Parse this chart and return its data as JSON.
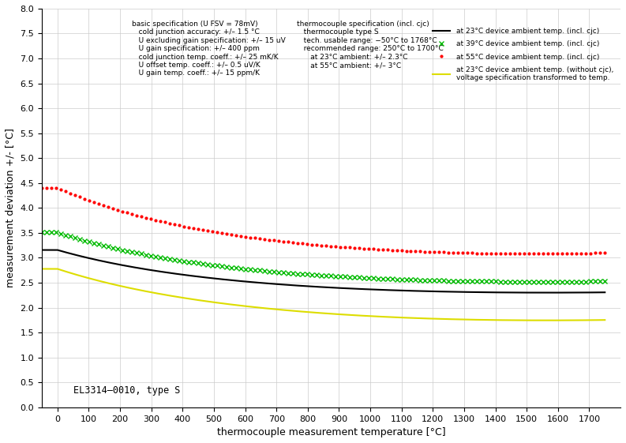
{
  "title": "",
  "xlabel": "thermocouple measurement temperature [°C]",
  "ylabel": "measurement deviation +/- [°C]",
  "annotation": "EL3314–0010, type S",
  "xlim": [
    -50,
    1800
  ],
  "ylim": [
    0,
    8
  ],
  "xticks": [
    0,
    100,
    200,
    300,
    400,
    500,
    600,
    700,
    800,
    900,
    1000,
    1100,
    1200,
    1300,
    1400,
    1500,
    1600,
    1700
  ],
  "yticks": [
    0,
    0.5,
    1,
    1.5,
    2,
    2.5,
    3,
    3.5,
    4,
    4.5,
    5,
    5.5,
    6,
    6.5,
    7,
    7.5,
    8
  ],
  "legend_entries": [
    "at 23°C device ambient temp. (incl. cjc)",
    "at 39°C device ambient temp. (incl. cjc)",
    "at 55°C device ambient temp. (incl. cjc)",
    "at 23°C device ambient temp. (without cjc),\nvoltage specification transformed to temp."
  ],
  "text_box_left": "basic specification (U FSV = 78mV)\n   cold junction accuracy: +/– 1.5 °C\n   U excluding gain specification: +/– 15 uV\n   U gain specification: +/– 400 ppm\n   cold junction temp. coeff.: +/– 25 mK/K\n   U offset temp. coeff.: +/– 0.5 uV/K\n   U gain temp. coeff.: +/– 15 ppm/K",
  "text_box_mid": "thermocouple specification (incl. cjc)\n   thermocouple type S\n   tech. usable range: −50°C to 1768°C\n   recommended range: 250°C to 1700°C\n      at 23°C ambient: +/– 2.3°C\n      at 55°C ambient: +/– 3°C",
  "background_color": "#ffffff",
  "grid_color": "#cccccc"
}
